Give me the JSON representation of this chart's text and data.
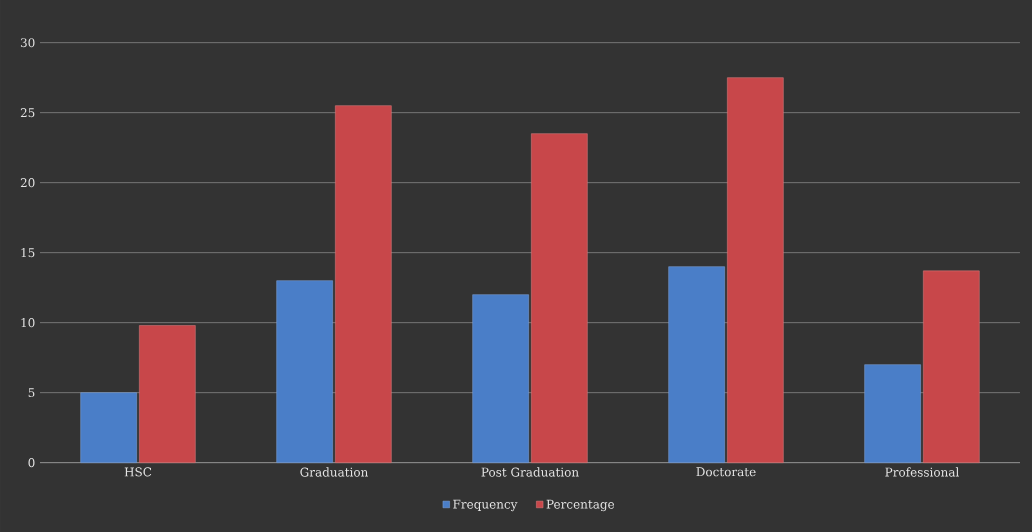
{
  "chart_data": {
    "type": "bar",
    "categories": [
      "HSC",
      "Graduation",
      "Post Graduation",
      "Doctorate",
      "Professional"
    ],
    "series": [
      {
        "name": "Frequency",
        "color": "#4a7ec8",
        "values": [
          5,
          13,
          12,
          14,
          7
        ]
      },
      {
        "name": "Percentage",
        "color": "#c8474a",
        "values": [
          9.8,
          25.5,
          23.5,
          27.5,
          13.7
        ]
      }
    ],
    "ylim": [
      0,
      30
    ],
    "yticks": [
      0,
      5,
      10,
      15,
      20,
      25,
      30
    ],
    "grid": "y",
    "legend": "bottom"
  }
}
